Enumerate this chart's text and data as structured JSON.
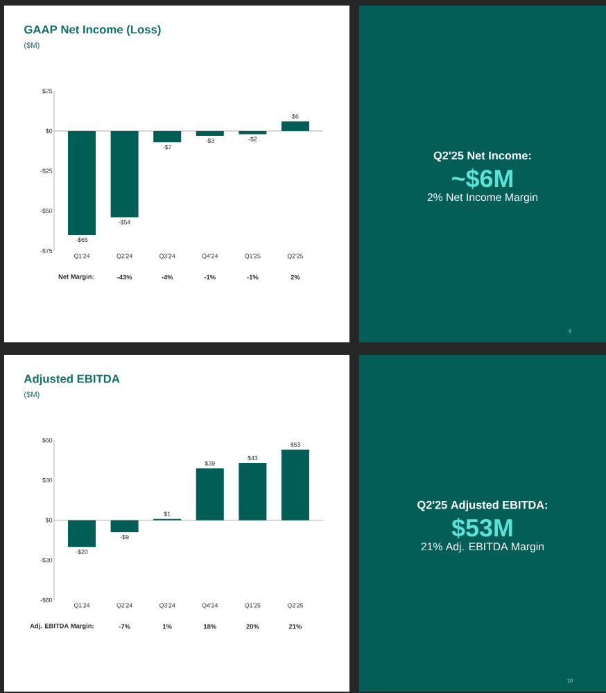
{
  "chart_data": [
    {
      "type": "bar",
      "title": "GAAP Net Income (Loss)",
      "subtitle": "($M)",
      "categories": [
        "Q1'24",
        "Q2'24",
        "Q3'24",
        "Q4'24",
        "Q1'25",
        "Q2'25"
      ],
      "values": [
        -65,
        -54,
        -7,
        -3,
        -2,
        6
      ],
      "value_labels": [
        "-$65",
        "-$54",
        "-$7",
        "-$3",
        "-$2",
        "$6"
      ],
      "color": "#005e57",
      "ylim": [
        -75,
        25
      ],
      "yticks": [
        {
          "value": 25,
          "label": "$25"
        },
        {
          "value": 0,
          "label": "$0"
        },
        {
          "value": -25,
          "label": "-$25"
        },
        {
          "value": -50,
          "label": "-$50"
        },
        {
          "value": -75,
          "label": "-$75"
        }
      ],
      "annotations": [
        "Net Margin:",
        "-43%",
        "-4%",
        "-1%",
        "-1%",
        "2%"
      ]
    },
    {
      "type": "other",
      "title": "Q2'25 Net Income:",
      "annotations": [
        "~$6M",
        "2% Net Income Margin",
        "9"
      ]
    },
    {
      "type": "bar",
      "title": "Adjusted EBITDA",
      "subtitle": "($M)",
      "categories": [
        "Q1'24",
        "Q2'24",
        "Q3'24",
        "Q4'24",
        "Q1'25",
        "Q2'25"
      ],
      "values": [
        -20,
        -9,
        1,
        39,
        43,
        53
      ],
      "value_labels": [
        "-$20",
        "-$9",
        "$1",
        "$39",
        "$43",
        "$53"
      ],
      "color": "#005e57",
      "ylim": [
        -60,
        60
      ],
      "yticks": [
        {
          "value": 60,
          "label": "$60"
        },
        {
          "value": 30,
          "label": "$30"
        },
        {
          "value": 0,
          "label": "$0"
        },
        {
          "value": -30,
          "label": "-$30"
        },
        {
          "value": -60,
          "label": "-$60"
        }
      ],
      "annotations": [
        "Adj. EBITDA Margin:",
        "-7%",
        "1%",
        "18%",
        "20%",
        "21%"
      ]
    },
    {
      "type": "other",
      "title": "Q2'25 Adjusted EBITDA:",
      "annotations": [
        "$53M",
        "21% Adj. EBITDA Margin",
        "10"
      ]
    }
  ]
}
